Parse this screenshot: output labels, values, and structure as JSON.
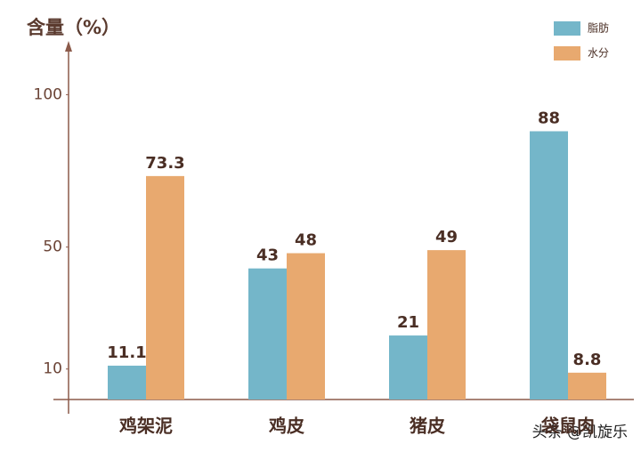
{
  "chart_data": {
    "type": "bar",
    "title": "含量（%）",
    "categories": [
      "鸡架泥",
      "鸡皮",
      "猪皮",
      "袋鼠肉"
    ],
    "series": [
      {
        "name": "脂肪",
        "color": "#74b6c9",
        "values": [
          11.1,
          43,
          21,
          88
        ]
      },
      {
        "name": "水分",
        "color": "#e8a96f",
        "values": [
          73.3,
          48,
          49,
          8.8
        ]
      }
    ],
    "ylim": [
      0,
      115
    ],
    "yticks": [
      10,
      50,
      100
    ],
    "legend": "top-right",
    "footer": "头条 @凯旋乐"
  }
}
